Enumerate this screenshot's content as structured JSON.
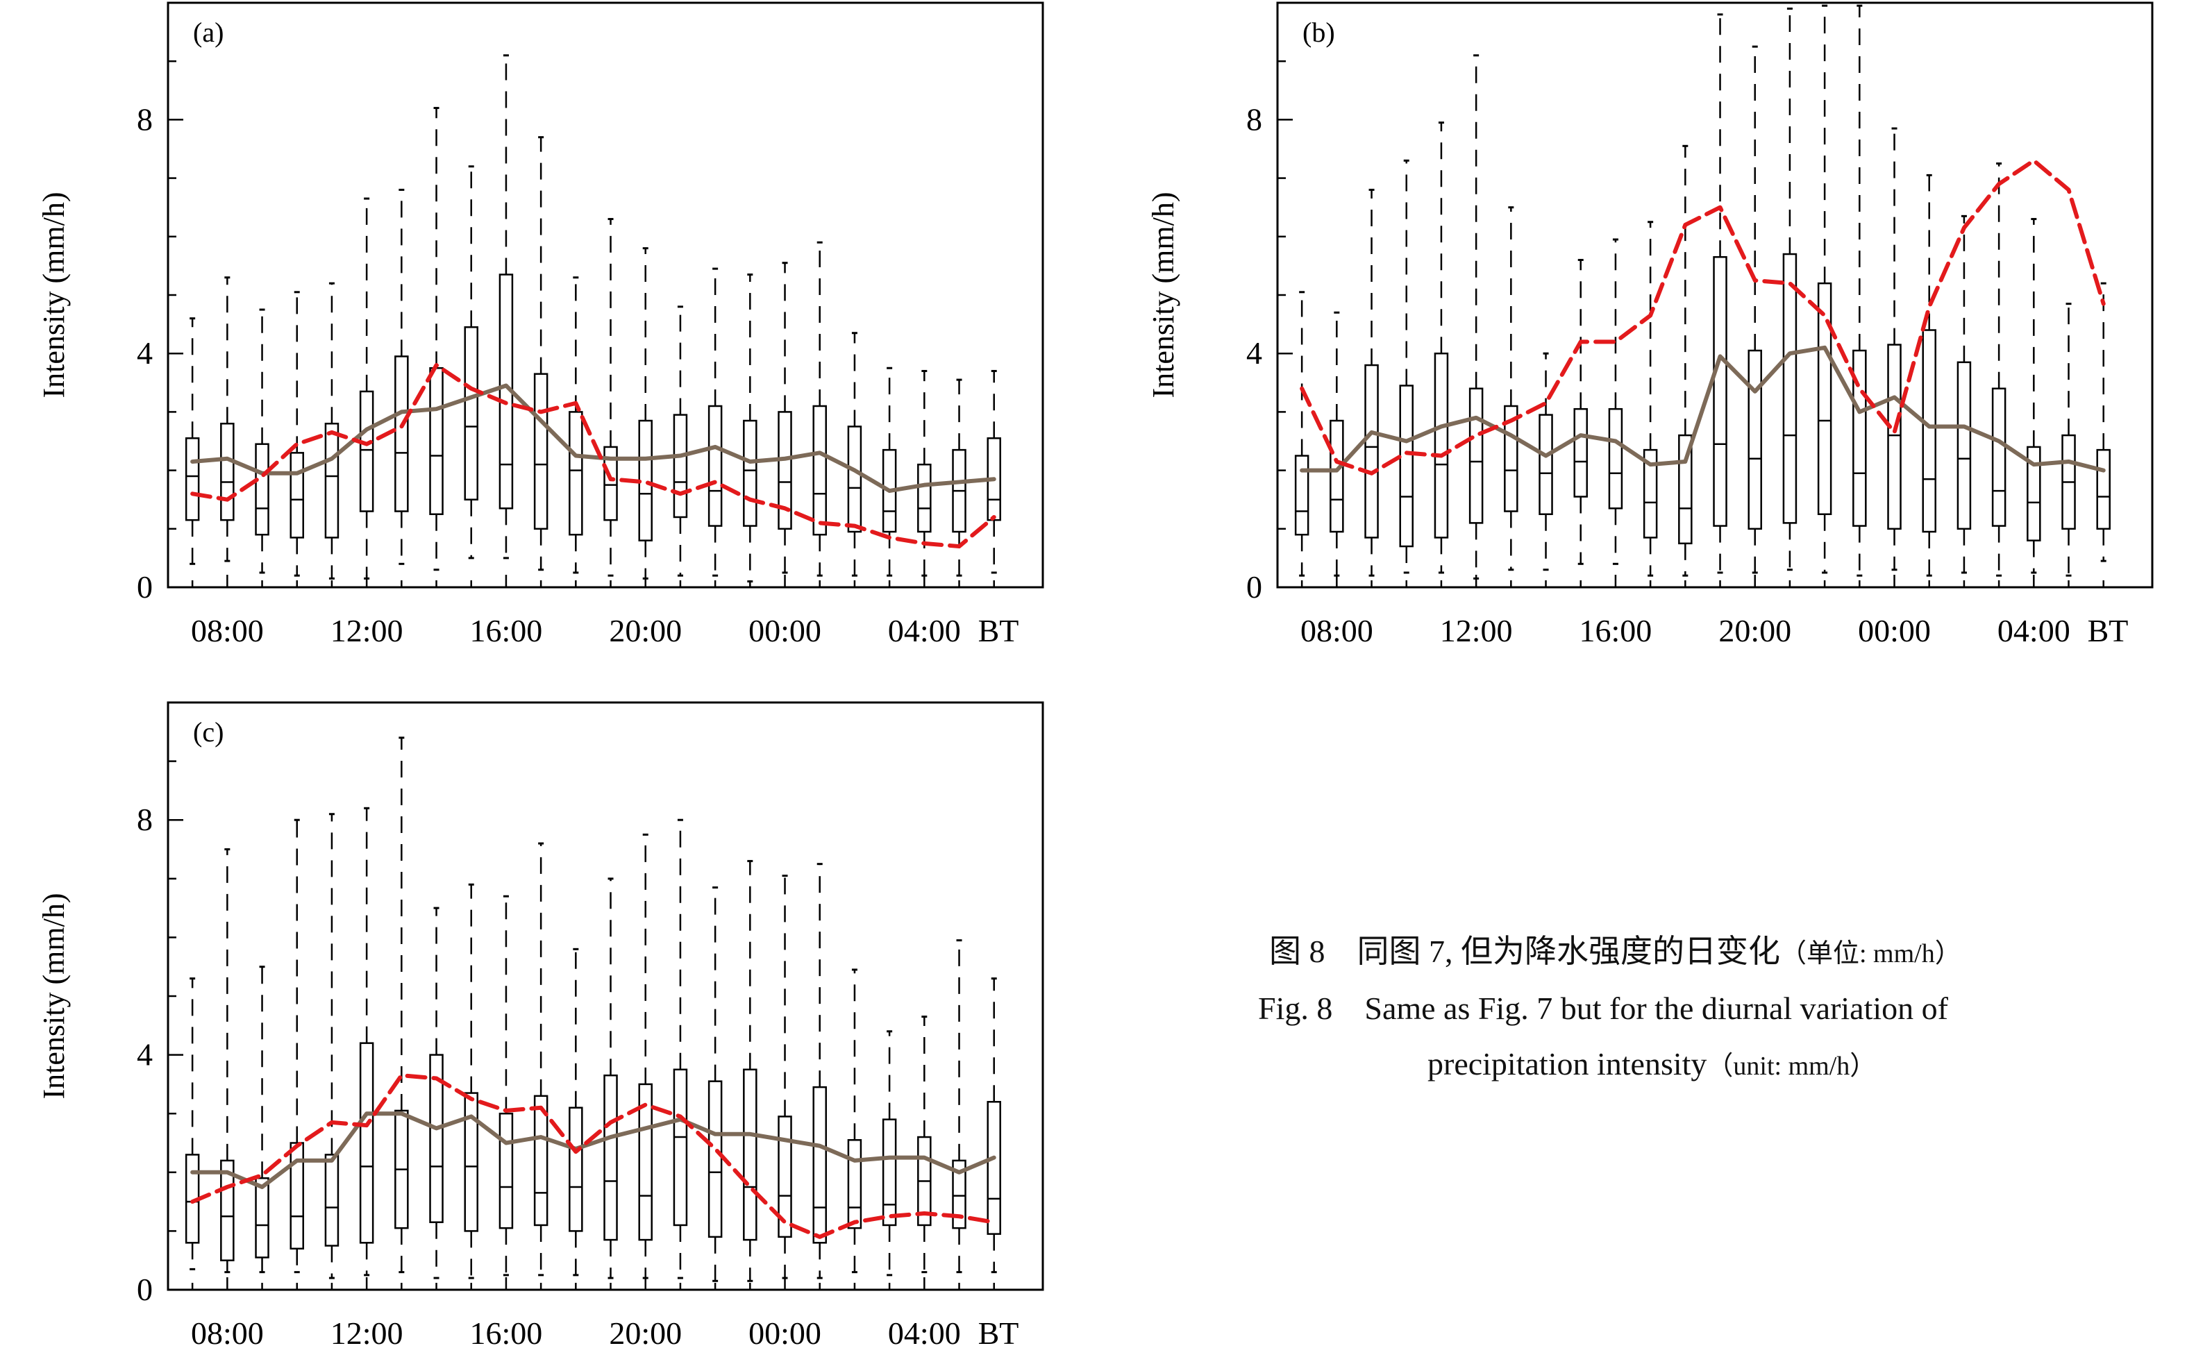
{
  "figure": {
    "caption_cn_main": "图 8　同图 7, 但为降水强度的日变化",
    "caption_cn_unit": "（单位: mm/h）",
    "caption_en_line1": "Fig. 8　Same as Fig. 7 but for the diurnal variation of",
    "caption_en_line2_main": "precipitation intensity",
    "caption_en_line2_unit": "（unit: mm/h）",
    "colors": {
      "mean_line": "#e31a1c",
      "median_line": "#7d6a58",
      "box": "#000000"
    }
  },
  "chart_data": [
    {
      "panel": "(a)",
      "type": "boxplot",
      "ylabel": "Intensity (mm/h)",
      "ylim": [
        0,
        10
      ],
      "yticks": [
        0,
        4,
        8
      ],
      "xlim": [
        6.3,
        31.4
      ],
      "xticks": [
        {
          "x": 8,
          "label": "08:00"
        },
        {
          "x": 12,
          "label": "12:00"
        },
        {
          "x": 16,
          "label": "16:00"
        },
        {
          "x": 20,
          "label": "20:00"
        },
        {
          "x": 24,
          "label": "00:00"
        },
        {
          "x": 28,
          "label": "04:00"
        }
      ],
      "xaxis_unit_label": "BT",
      "hours": [
        7,
        8,
        9,
        10,
        11,
        12,
        13,
        14,
        15,
        16,
        17,
        18,
        19,
        20,
        21,
        22,
        23,
        24,
        25,
        26,
        27,
        28,
        29,
        30
      ],
      "box_q1": [
        1.15,
        1.15,
        0.9,
        0.85,
        0.85,
        1.3,
        1.3,
        1.25,
        1.5,
        1.35,
        1.0,
        0.9,
        1.15,
        0.8,
        1.2,
        1.05,
        1.05,
        1.0,
        0.9,
        0.95,
        0.95,
        0.95,
        0.95,
        1.15
      ],
      "box_median": [
        1.9,
        1.8,
        1.35,
        1.5,
        1.9,
        2.35,
        2.3,
        2.25,
        2.75,
        2.1,
        2.1,
        2.0,
        1.75,
        1.6,
        1.8,
        1.65,
        2.0,
        1.8,
        1.6,
        1.7,
        1.3,
        1.35,
        1.65,
        1.5
      ],
      "box_q3": [
        2.55,
        2.8,
        2.45,
        2.3,
        2.8,
        3.35,
        3.95,
        3.75,
        4.45,
        5.35,
        3.65,
        3.0,
        2.4,
        2.85,
        2.95,
        3.1,
        2.85,
        3.0,
        3.1,
        2.75,
        2.35,
        2.1,
        2.35,
        2.55
      ],
      "whisker_low": [
        0.4,
        0.45,
        0.25,
        0.2,
        0.15,
        0.15,
        0.4,
        0.3,
        0.5,
        0.5,
        0.3,
        0.25,
        0.2,
        0.15,
        0.2,
        0.2,
        0.1,
        0.25,
        0.2,
        0.2,
        0.2,
        0.2,
        0.2,
        0.25
      ],
      "whisker_high": [
        4.6,
        5.3,
        4.75,
        5.05,
        5.2,
        6.65,
        6.8,
        8.2,
        7.2,
        9.1,
        7.7,
        5.3,
        6.3,
        5.8,
        4.8,
        5.45,
        5.35,
        5.55,
        5.9,
        4.35,
        3.75,
        3.7,
        3.55,
        3.7
      ],
      "series": [
        {
          "name": "mean",
          "style": "dashed",
          "values": [
            1.6,
            1.5,
            1.9,
            2.45,
            2.65,
            2.45,
            2.75,
            3.8,
            3.4,
            3.15,
            3.0,
            3.15,
            1.85,
            1.8,
            1.6,
            1.8,
            1.5,
            1.35,
            1.1,
            1.05,
            0.85,
            0.75,
            0.7,
            1.2
          ]
        },
        {
          "name": "median",
          "style": "solid",
          "values": [
            2.15,
            2.2,
            1.95,
            1.95,
            2.2,
            2.7,
            3.0,
            3.05,
            3.25,
            3.45,
            2.85,
            2.25,
            2.2,
            2.2,
            2.25,
            2.4,
            2.15,
            2.2,
            2.3,
            2.0,
            1.65,
            1.75,
            1.8,
            1.85
          ]
        }
      ]
    },
    {
      "panel": "(b)",
      "type": "boxplot",
      "ylabel": "Intensity (mm/h)",
      "ylim": [
        0,
        10
      ],
      "yticks": [
        0,
        4,
        8
      ],
      "xlim": [
        6.3,
        31.4
      ],
      "xticks": [
        {
          "x": 8,
          "label": "08:00"
        },
        {
          "x": 12,
          "label": "12:00"
        },
        {
          "x": 16,
          "label": "16:00"
        },
        {
          "x": 20,
          "label": "20:00"
        },
        {
          "x": 24,
          "label": "00:00"
        },
        {
          "x": 28,
          "label": "04:00"
        }
      ],
      "xaxis_unit_label": "BT",
      "hours": [
        7,
        8,
        9,
        10,
        11,
        12,
        13,
        14,
        15,
        16,
        17,
        18,
        19,
        20,
        21,
        22,
        23,
        24,
        25,
        26,
        27,
        28,
        29,
        30
      ],
      "box_q1": [
        0.9,
        0.95,
        0.85,
        0.7,
        0.85,
        1.1,
        1.3,
        1.25,
        1.55,
        1.35,
        0.85,
        0.75,
        1.05,
        1.0,
        1.1,
        1.25,
        1.05,
        1.0,
        0.95,
        1.0,
        1.05,
        0.8,
        1.0,
        1.0
      ],
      "box_median": [
        1.3,
        1.5,
        2.4,
        1.55,
        2.1,
        2.15,
        2.0,
        1.95,
        2.15,
        1.95,
        1.45,
        1.35,
        2.45,
        2.2,
        2.6,
        2.85,
        1.95,
        2.6,
        1.85,
        2.2,
        1.65,
        1.45,
        1.8,
        1.55
      ],
      "box_q3": [
        2.25,
        2.85,
        3.8,
        3.45,
        4.0,
        3.4,
        3.1,
        2.95,
        3.05,
        3.05,
        2.35,
        2.6,
        5.65,
        4.05,
        5.7,
        5.2,
        4.05,
        4.15,
        4.4,
        3.85,
        3.4,
        2.4,
        2.6,
        2.35
      ],
      "whisker_low": [
        0.2,
        0.2,
        0.2,
        0.25,
        0.25,
        0.15,
        0.3,
        0.3,
        0.4,
        0.4,
        0.2,
        0.2,
        0.25,
        0.25,
        0.3,
        0.25,
        0.2,
        0.3,
        0.2,
        0.25,
        0.2,
        0.25,
        0.2,
        0.45
      ],
      "whisker_high": [
        5.05,
        4.7,
        6.8,
        7.3,
        7.95,
        9.1,
        6.5,
        4.0,
        5.6,
        5.95,
        6.25,
        7.55,
        9.8,
        9.25,
        9.9,
        9.95,
        9.95,
        7.85,
        7.05,
        6.35,
        7.25,
        6.3,
        4.85,
        5.2
      ],
      "series": [
        {
          "name": "mean",
          "style": "dashed",
          "values": [
            3.4,
            2.15,
            1.95,
            2.3,
            2.25,
            2.6,
            2.85,
            3.15,
            4.2,
            4.2,
            4.65,
            6.2,
            6.5,
            5.25,
            5.2,
            4.65,
            3.4,
            2.65,
            4.8,
            6.15,
            6.9,
            7.3,
            6.8,
            4.85
          ]
        },
        {
          "name": "median",
          "style": "solid",
          "values": [
            2.0,
            2.0,
            2.65,
            2.5,
            2.75,
            2.9,
            2.6,
            2.25,
            2.6,
            2.5,
            2.1,
            2.15,
            3.95,
            3.35,
            4.0,
            4.1,
            3.0,
            3.25,
            2.75,
            2.75,
            2.5,
            2.1,
            2.15,
            2.0
          ]
        }
      ]
    },
    {
      "panel": "(c)",
      "type": "boxplot",
      "ylabel": "Intensity (mm/h)",
      "ylim": [
        0,
        10
      ],
      "yticks": [
        0,
        4,
        8
      ],
      "xlim": [
        6.3,
        31.4
      ],
      "xticks": [
        {
          "x": 8,
          "label": "08:00"
        },
        {
          "x": 12,
          "label": "12:00"
        },
        {
          "x": 16,
          "label": "16:00"
        },
        {
          "x": 20,
          "label": "20:00"
        },
        {
          "x": 24,
          "label": "00:00"
        },
        {
          "x": 28,
          "label": "04:00"
        }
      ],
      "xaxis_unit_label": "BT",
      "hours": [
        7,
        8,
        9,
        10,
        11,
        12,
        13,
        14,
        15,
        16,
        17,
        18,
        19,
        20,
        21,
        22,
        23,
        24,
        25,
        26,
        27,
        28,
        29,
        30
      ],
      "box_q1": [
        0.8,
        0.5,
        0.55,
        0.7,
        0.75,
        0.8,
        1.05,
        1.15,
        1.0,
        1.05,
        1.1,
        1.0,
        0.85,
        0.85,
        1.1,
        0.9,
        0.85,
        0.9,
        0.8,
        1.05,
        1.1,
        1.1,
        1.05,
        0.95
      ],
      "box_median": [
        1.5,
        1.25,
        1.1,
        1.25,
        1.4,
        2.1,
        2.05,
        2.1,
        2.1,
        1.75,
        1.65,
        1.75,
        1.85,
        1.6,
        2.6,
        2.0,
        1.75,
        1.6,
        1.4,
        1.4,
        1.45,
        1.85,
        1.6,
        1.55
      ],
      "box_q3": [
        2.3,
        2.2,
        1.9,
        2.5,
        2.3,
        4.2,
        3.05,
        4.0,
        3.35,
        3.0,
        3.3,
        3.1,
        3.65,
        3.5,
        3.75,
        3.55,
        3.75,
        2.95,
        3.45,
        2.55,
        2.9,
        2.6,
        2.2,
        3.2
      ],
      "whisker_low": [
        0.35,
        0.3,
        0.3,
        0.3,
        0.2,
        0.25,
        0.3,
        0.2,
        0.2,
        0.25,
        0.25,
        0.25,
        0.2,
        0.2,
        0.2,
        0.15,
        0.15,
        0.2,
        0.2,
        0.3,
        0.25,
        0.3,
        0.3,
        0.3
      ],
      "whisker_high": [
        5.3,
        7.5,
        5.5,
        8.0,
        8.1,
        8.2,
        9.4,
        6.5,
        6.9,
        6.7,
        7.6,
        5.8,
        7.0,
        7.75,
        8.0,
        6.85,
        7.3,
        7.05,
        7.25,
        5.45,
        4.4,
        4.65,
        5.95,
        5.3
      ],
      "series": [
        {
          "name": "mean",
          "style": "dashed",
          "values": [
            1.5,
            1.75,
            1.95,
            2.45,
            2.85,
            2.8,
            3.65,
            3.6,
            3.25,
            3.05,
            3.1,
            2.35,
            2.85,
            3.15,
            2.95,
            2.4,
            1.75,
            1.15,
            0.9,
            1.15,
            1.25,
            1.3,
            1.25,
            1.15
          ]
        },
        {
          "name": "median",
          "style": "solid",
          "values": [
            2.0,
            2.0,
            1.75,
            2.2,
            2.2,
            3.0,
            3.0,
            2.75,
            2.95,
            2.5,
            2.6,
            2.4,
            2.6,
            2.75,
            2.9,
            2.65,
            2.65,
            2.55,
            2.45,
            2.2,
            2.25,
            2.25,
            2.0,
            2.25
          ]
        }
      ]
    }
  ]
}
